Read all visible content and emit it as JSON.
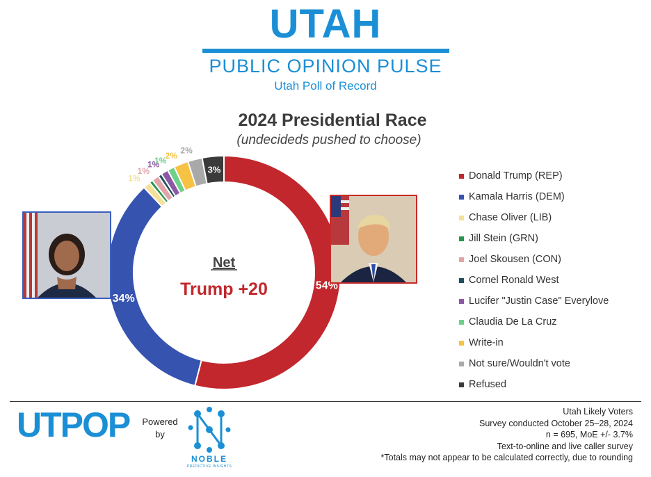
{
  "header": {
    "brand_title": "UTAH",
    "brand_subtitle": "PUBLIC OPINION PULSE",
    "tagline": "Utah Poll of Record"
  },
  "chart_data": {
    "type": "pie",
    "variant": "donut",
    "title": "2024 Presidential Race",
    "subtitle": "(undecideds pushed to choose)",
    "center_heading": "Net",
    "center_value": "Trump +20",
    "slices": [
      {
        "name": "Donald Trump (REP)",
        "value": 54,
        "label": "54%",
        "color": "#c1272d"
      },
      {
        "name": "Kamala Harris (DEM)",
        "value": 34,
        "label": "34%",
        "color": "#3653b0"
      },
      {
        "name": "Chase Oliver (LIB)",
        "value": 1,
        "label": "1%",
        "color": "#f3e19a"
      },
      {
        "name": "Jill Stein (GRN)",
        "value": 0.5,
        "label": "",
        "color": "#27964a"
      },
      {
        "name": "Joel Skousen (CON)",
        "value": 1,
        "label": "1%",
        "color": "#e1a5a8"
      },
      {
        "name": "Cornel Ronald West",
        "value": 0.5,
        "label": "",
        "color": "#1f4e5c"
      },
      {
        "name": "Lucifer \"Justin Case\" Everylove",
        "value": 1,
        "label": "1%",
        "color": "#8c58a6"
      },
      {
        "name": "Claudia De La Cruz",
        "value": 1,
        "label": "1%",
        "color": "#6fd08a"
      },
      {
        "name": "Write-in",
        "value": 2,
        "label": "2%",
        "color": "#f6c244"
      },
      {
        "name": "Not sure/Wouldn't vote",
        "value": 2,
        "label": "2%",
        "color": "#a9a9a9"
      },
      {
        "name": "Refused",
        "value": 3,
        "label": "3%",
        "color": "#3b3b3b"
      }
    ]
  },
  "legend": {
    "items": [
      {
        "label": "Donald Trump (REP)",
        "color": "#c1272d"
      },
      {
        "label": "Kamala Harris (DEM)",
        "color": "#3653b0"
      },
      {
        "label": "Chase Oliver (LIB)",
        "color": "#f3e19a"
      },
      {
        "label": "Jill Stein (GRN)",
        "color": "#27964a"
      },
      {
        "label": "Joel Skousen (CON)",
        "color": "#e1a5a8"
      },
      {
        "label": "Cornel Ronald West",
        "color": "#1f4e5c"
      },
      {
        "label": "Lucifer \"Justin Case\" Everylove",
        "color": "#8c58a6"
      },
      {
        "label": "Claudia De La Cruz",
        "color": "#6fd08a"
      },
      {
        "label": "Write-in",
        "color": "#f6c244"
      },
      {
        "label": "Not sure/Wouldn't vote",
        "color": "#a9a9a9"
      },
      {
        "label": "Refused",
        "color": "#3b3b3b"
      }
    ]
  },
  "footer": {
    "logo_text": "UTPOP",
    "powered_line1": "Powered",
    "powered_line2": "by",
    "partner_name": "NOBLE",
    "partner_sub": "PREDICTIVE INSIGHTS",
    "lines": [
      "Utah Likely Voters",
      "Survey conducted October 25–28, 2024",
      "n = 695, MoE +/- 3.7%",
      "Text-to-online and live caller survey",
      "*Totals may not appear to be calculated correctly, due to rounding"
    ]
  },
  "colors": {
    "brand_blue": "#1b8fd6",
    "rep_red": "#c1272d",
    "dem_blue": "#3653b0"
  }
}
